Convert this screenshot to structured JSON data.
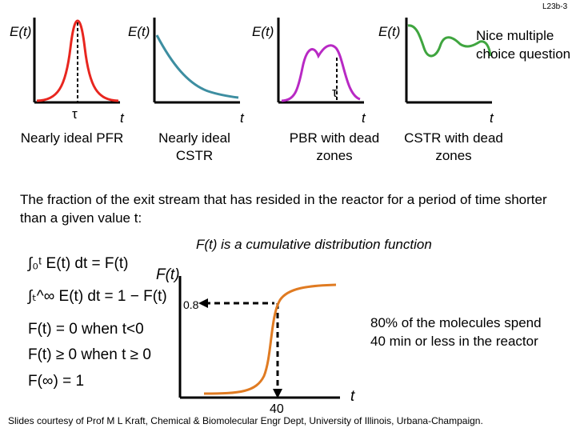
{
  "slide_id": "L23b-3",
  "rtd_panels": [
    {
      "ylabel": "E(t)",
      "xlabel": "",
      "tau": "τ",
      "caption": "Nearly ideal PFR",
      "color": "#e8261f"
    },
    {
      "ylabel": "E(t)",
      "xlabel": "t",
      "tau": "",
      "caption": "Nearly ideal CSTR",
      "color": "#3d8ea1"
    },
    {
      "ylabel": "E(t)",
      "xlabel": "t",
      "tau": "τ",
      "caption": "PBR with dead zones",
      "color": "#b829c4"
    },
    {
      "ylabel": "E(t)",
      "xlabel": "t",
      "tau": "",
      "caption": "CSTR with dead zones",
      "color": "#3fa53f"
    }
  ],
  "pfr_t_label": "t",
  "question_note": "Nice multiple choice question",
  "fraction_text": "The fraction of the exit stream that has resided in the reactor for a period of time shorter than a given value t:",
  "cdf_statement": "F(t) is a cumulative distribution function",
  "equations": [
    "∫₀ᵗ E(t) dt = F(t)",
    "∫ₜ^∞ E(t) dt = 1 − F(t)",
    "F(t) = 0 when t<0",
    "F(t) ≥ 0 when t ≥ 0",
    "F(∞) = 1"
  ],
  "cdf_plot": {
    "ylabel": "F(t)",
    "xlabel": "t",
    "y_marker": "0.8",
    "x_marker": "40",
    "curve_color": "#e07b22"
  },
  "annotation": "80% of the molecules spend 40 min or less in the reactor",
  "footer": "Slides courtesy of Prof M L Kraft, Chemical & Biomolecular Engr Dept, University of Illinois, Urbana-Champaign."
}
